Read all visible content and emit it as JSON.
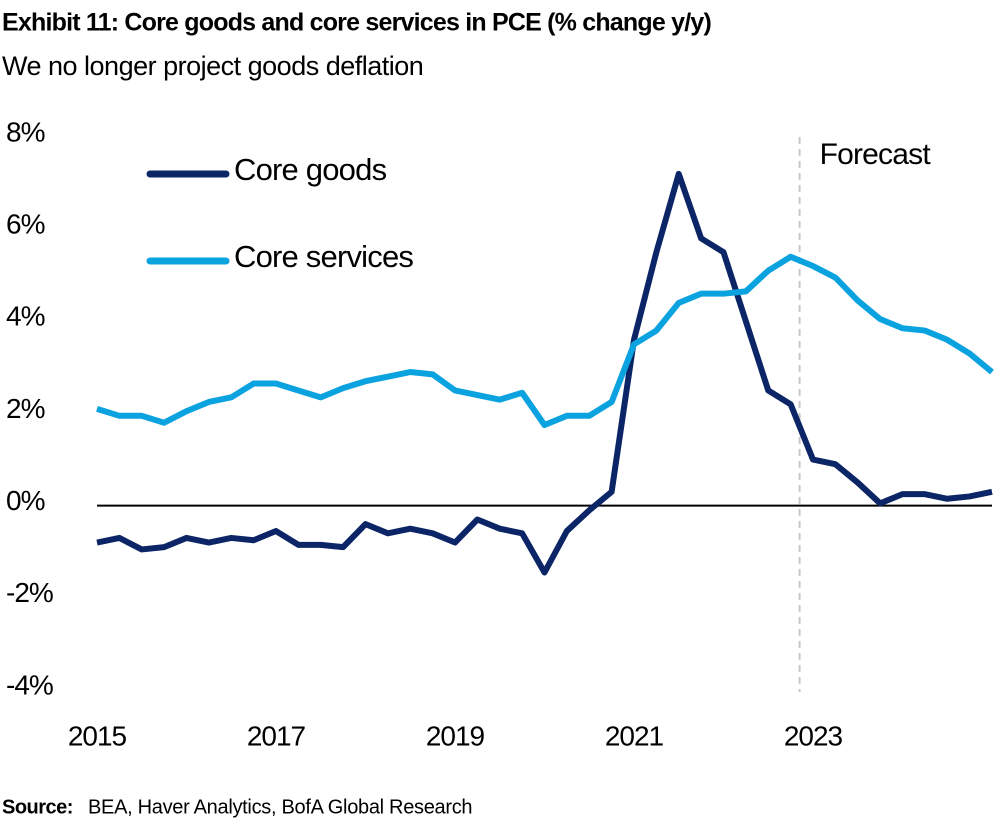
{
  "chart_data": {
    "type": "line",
    "title": "Exhibit 11: Core goods and core services in PCE (% change y/y)",
    "subtitle": "We no longer project goods deflation",
    "x": [
      2015,
      2015.25,
      2015.5,
      2015.75,
      2016,
      2016.25,
      2016.5,
      2016.75,
      2017,
      2017.25,
      2017.5,
      2017.75,
      2018,
      2018.25,
      2018.5,
      2018.75,
      2019,
      2019.25,
      2019.5,
      2019.75,
      2020,
      2020.25,
      2020.5,
      2020.75,
      2021,
      2021.25,
      2021.5,
      2021.75,
      2022,
      2022.25,
      2022.5,
      2022.75,
      2023,
      2023.25,
      2023.5,
      2023.75,
      2024,
      2024.25,
      2024.5,
      2024.75,
      2025
    ],
    "series": [
      {
        "name": "Core goods",
        "color": "#0b2566",
        "values": [
          -0.8,
          -0.7,
          -0.95,
          -0.9,
          -0.7,
          -0.8,
          -0.7,
          -0.75,
          -0.55,
          -0.85,
          -0.85,
          -0.9,
          -0.4,
          -0.6,
          -0.5,
          -0.6,
          -0.8,
          -0.3,
          -0.5,
          -0.6,
          -1.45,
          -0.55,
          -0.1,
          0.3,
          3.6,
          5.5,
          7.2,
          5.8,
          5.5,
          4.0,
          2.5,
          2.2,
          1.0,
          0.9,
          0.5,
          0.05,
          0.25,
          0.25,
          0.15,
          0.2,
          0.3
        ]
      },
      {
        "name": "Core services",
        "color": "#0ba2e0",
        "values": [
          2.1,
          1.95,
          1.95,
          1.8,
          2.05,
          2.25,
          2.35,
          2.65,
          2.65,
          2.5,
          2.35,
          2.55,
          2.7,
          2.8,
          2.9,
          2.85,
          2.5,
          2.4,
          2.3,
          2.45,
          1.75,
          1.95,
          1.95,
          2.25,
          3.5,
          3.8,
          4.4,
          4.6,
          4.6,
          4.65,
          5.1,
          5.4,
          5.2,
          4.95,
          4.45,
          4.05,
          3.85,
          3.8,
          3.6,
          3.3,
          2.9
        ]
      }
    ],
    "xlim": [
      2015,
      2025
    ],
    "xticks": [
      2015,
      2017,
      2019,
      2021,
      2023
    ],
    "ylim": [
      -4,
      8
    ],
    "yticks": [
      {
        "value": -4,
        "label": "-4%"
      },
      {
        "value": -2,
        "label": "-2%"
      },
      {
        "value": 0,
        "label": "0%"
      },
      {
        "value": 2,
        "label": "2%"
      },
      {
        "value": 4,
        "label": "4%"
      },
      {
        "value": 6,
        "label": "6%"
      },
      {
        "value": 8,
        "label": "8%"
      }
    ],
    "grid": false,
    "legend": "upper left",
    "annotation": {
      "text": "Forecast",
      "x": 2022.85
    },
    "source_label": "Source:",
    "source": "BEA, Haver Analytics, BofA Global Research"
  }
}
